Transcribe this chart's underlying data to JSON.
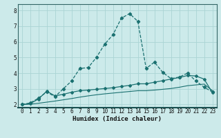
{
  "xlabel": "Humidex (Indice chaleur)",
  "bg_color": "#cceaea",
  "grid_color": "#aad4d4",
  "line_color": "#1a7070",
  "xlim": [
    -0.5,
    23.5
  ],
  "ylim": [
    1.8,
    8.4
  ],
  "xticks": [
    0,
    1,
    2,
    3,
    4,
    5,
    6,
    7,
    8,
    9,
    10,
    11,
    12,
    13,
    14,
    15,
    16,
    17,
    18,
    19,
    20,
    21,
    22,
    23
  ],
  "yticks": [
    2,
    3,
    4,
    5,
    6,
    7,
    8
  ],
  "line1_x": [
    0,
    1,
    2,
    3,
    4,
    5,
    6,
    7,
    8,
    9,
    10,
    11,
    12,
    13,
    14,
    15,
    16,
    17,
    18,
    19,
    20,
    21,
    22,
    23
  ],
  "line1_y": [
    2.0,
    2.1,
    2.4,
    2.8,
    2.5,
    3.0,
    3.5,
    4.3,
    4.35,
    5.0,
    5.85,
    6.45,
    7.5,
    7.8,
    7.3,
    4.3,
    4.7,
    4.05,
    3.65,
    3.75,
    4.0,
    3.5,
    3.1,
    2.8
  ],
  "line2_x": [
    0,
    1,
    2,
    3,
    4,
    5,
    6,
    7,
    8,
    9,
    10,
    11,
    12,
    13,
    14,
    15,
    16,
    17,
    18,
    19,
    20,
    21,
    22,
    23
  ],
  "line2_y": [
    2.0,
    2.05,
    2.35,
    2.85,
    2.55,
    2.65,
    2.78,
    2.88,
    2.92,
    2.97,
    3.02,
    3.07,
    3.15,
    3.22,
    3.32,
    3.32,
    3.42,
    3.52,
    3.62,
    3.72,
    3.85,
    3.82,
    3.62,
    2.75
  ],
  "line3_x": [
    0,
    1,
    2,
    3,
    4,
    5,
    6,
    7,
    8,
    9,
    10,
    11,
    12,
    13,
    14,
    15,
    16,
    17,
    18,
    19,
    20,
    21,
    22,
    23
  ],
  "line3_y": [
    2.0,
    2.02,
    2.08,
    2.15,
    2.22,
    2.3,
    2.38,
    2.47,
    2.55,
    2.62,
    2.68,
    2.73,
    2.78,
    2.83,
    2.88,
    2.88,
    2.92,
    2.97,
    3.02,
    3.1,
    3.2,
    3.25,
    3.3,
    2.88
  ]
}
